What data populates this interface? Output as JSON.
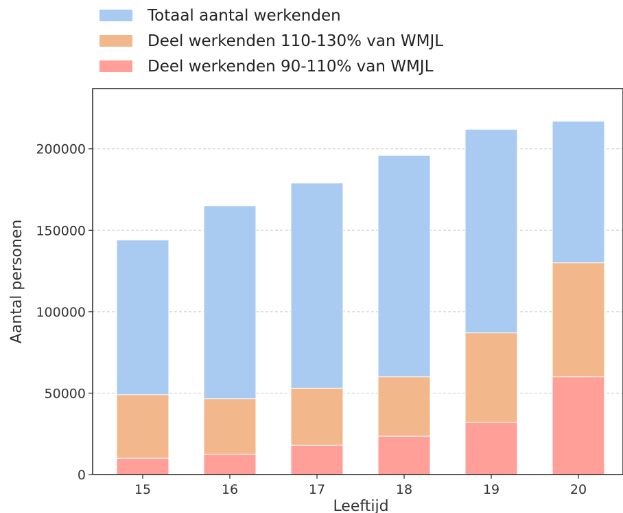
{
  "chart_data": {
    "type": "bar",
    "stacked": false,
    "overlay": true,
    "categories": [
      "15",
      "16",
      "17",
      "18",
      "19",
      "20"
    ],
    "series": [
      {
        "name": "Totaal aantal werkenden",
        "values": [
          144000,
          165000,
          179000,
          196000,
          212000,
          217000
        ],
        "color": "#a9cbf2"
      },
      {
        "name": "Deel werkenden 110-130% van WMJL",
        "values": [
          49000,
          46500,
          53000,
          60000,
          87000,
          130000
        ],
        "color": "#f2b78a"
      },
      {
        "name": "Deel werkenden 90-110% van WMJL",
        "values": [
          10000,
          12500,
          18000,
          23500,
          32000,
          60000
        ],
        "color": "#ff9f97"
      }
    ],
    "xlabel": "Leeftijd",
    "ylabel": "Aantal personen",
    "ylim": [
      0,
      237000
    ],
    "yticks": [
      "0",
      "50000",
      "100000",
      "150000",
      "200000"
    ],
    "ytick_values": [
      0,
      50000,
      100000,
      150000,
      200000
    ],
    "grid": "horizontal-dashed",
    "legend_position": "top-outside"
  }
}
